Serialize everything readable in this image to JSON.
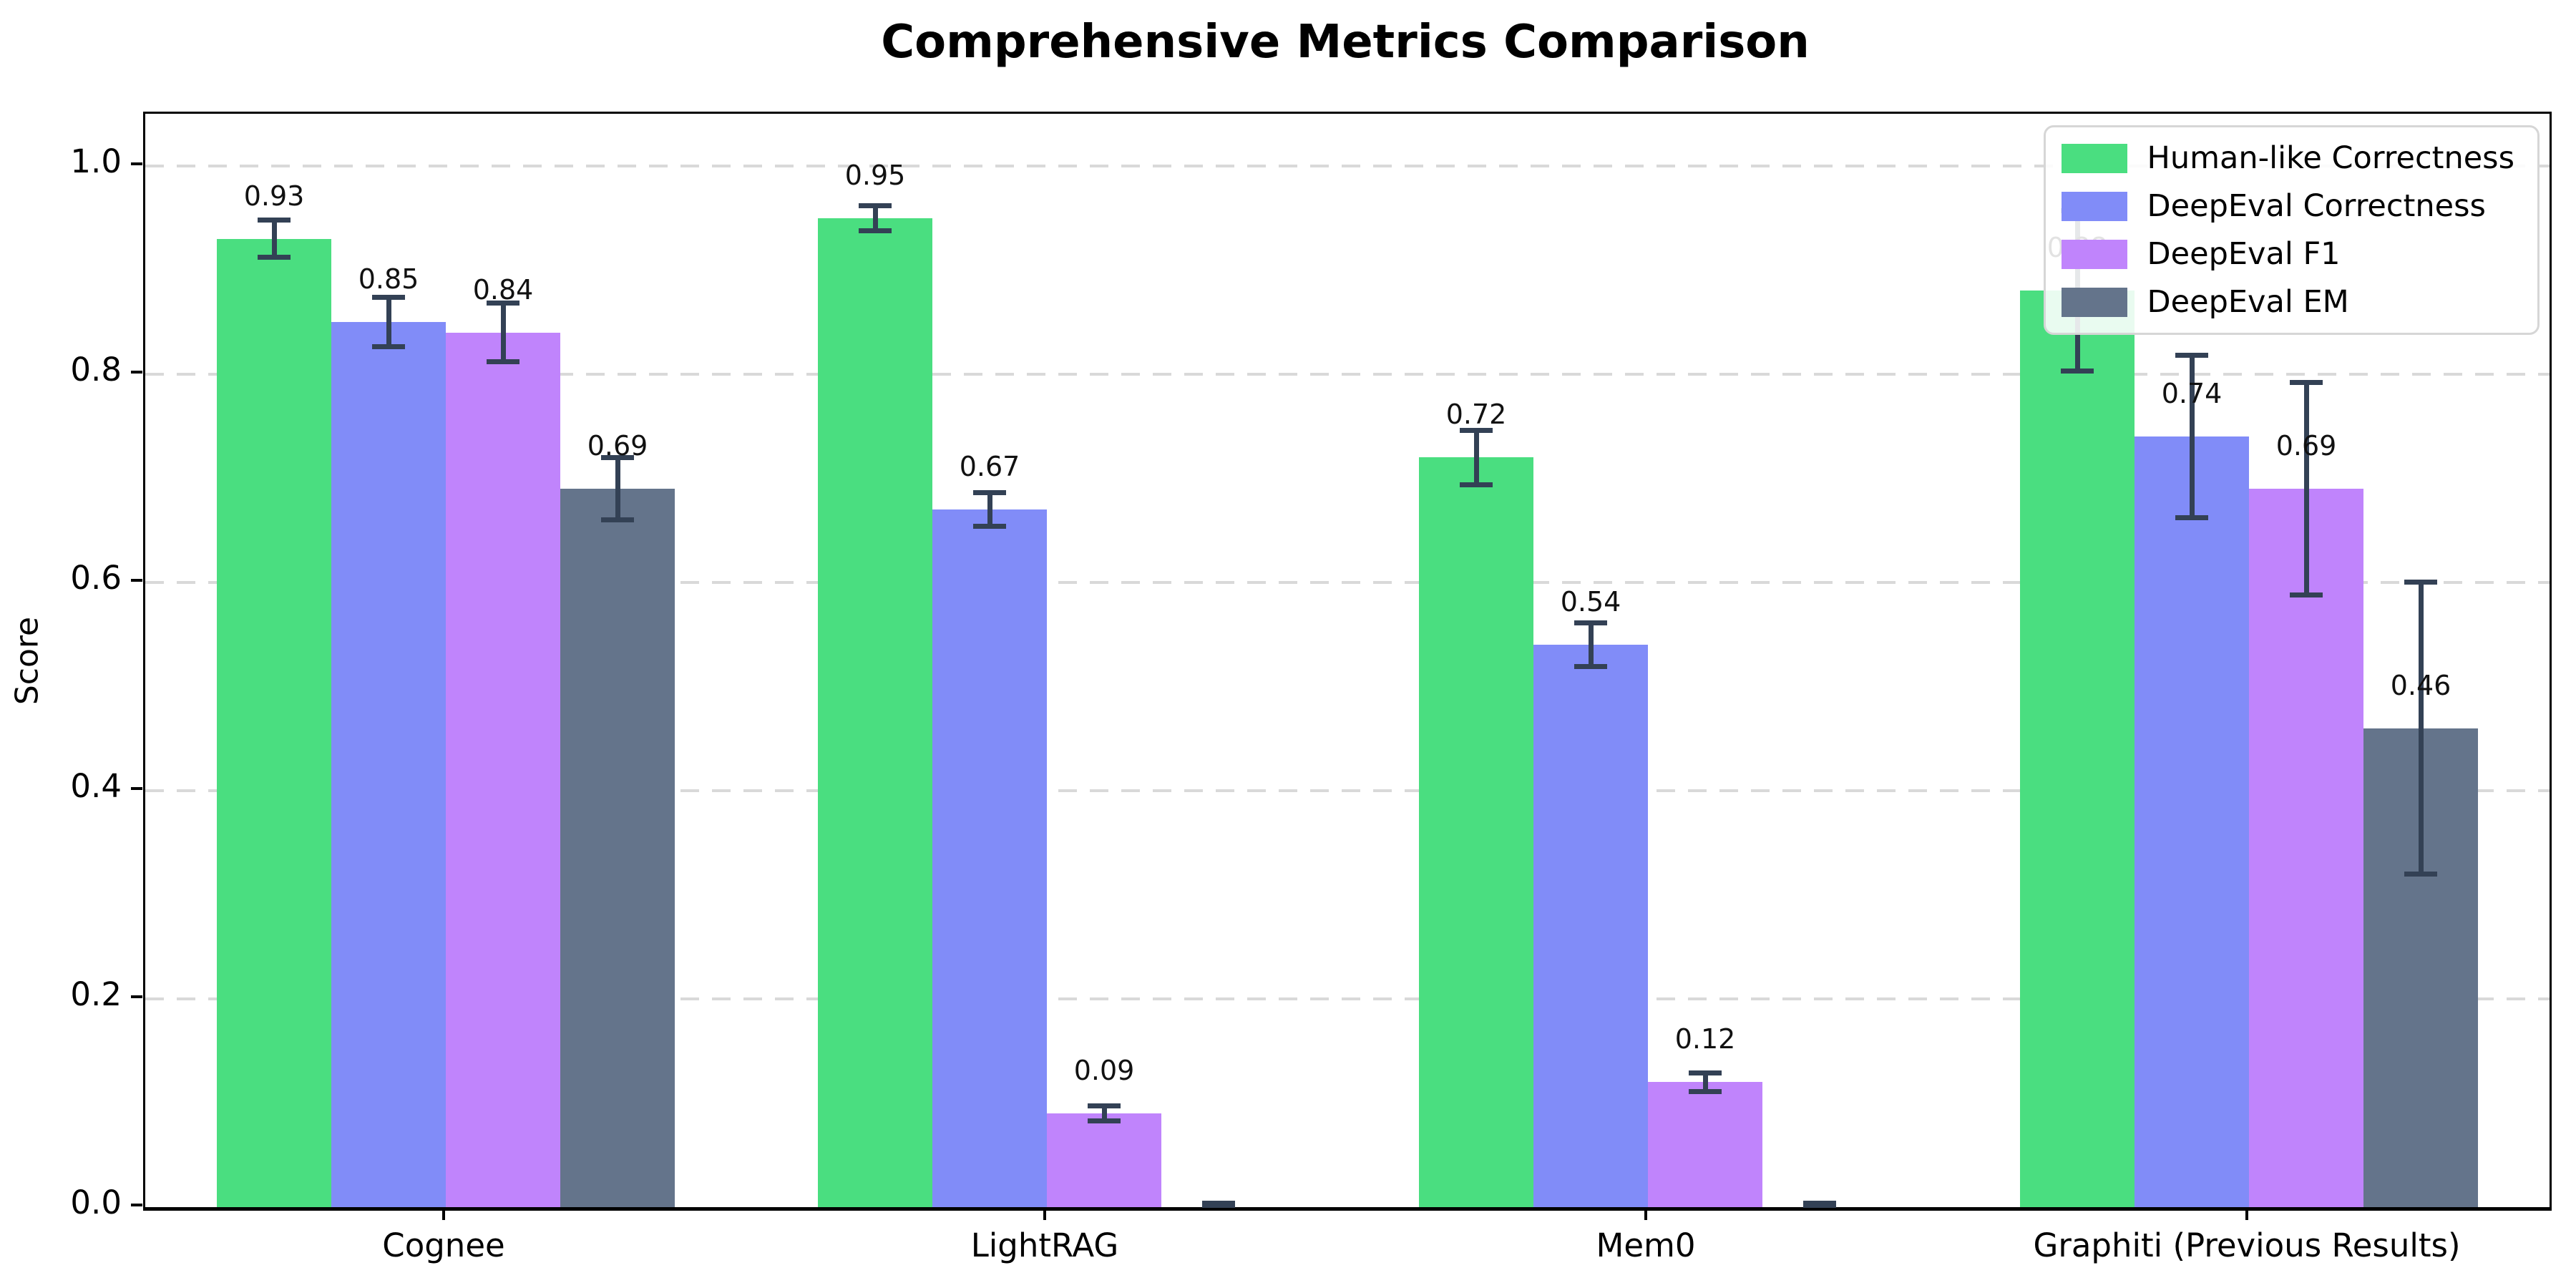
{
  "chart_data": {
    "type": "bar",
    "title": "Comprehensive Metrics Comparison",
    "xlabel": "",
    "ylabel": "Score",
    "categories": [
      "Cognee",
      "LightRAG",
      "Mem0",
      "Graphiti (Previous Results)"
    ],
    "series": [
      {
        "name": "Human-like Correctness",
        "color": "#4ade80",
        "values": [
          0.93,
          0.95,
          0.72,
          0.88
        ],
        "errors": [
          0.018,
          0.012,
          0.026,
          0.077
        ],
        "labels": [
          "0.93",
          "0.95",
          "0.72",
          "0.88"
        ]
      },
      {
        "name": "DeepEval Correctness",
        "color": "#818cf8",
        "values": [
          0.85,
          0.67,
          0.54,
          0.74
        ],
        "errors": [
          0.024,
          0.016,
          0.021,
          0.078
        ],
        "labels": [
          "0.85",
          "0.67",
          "0.54",
          "0.74"
        ]
      },
      {
        "name": "DeepEval F1",
        "color": "#c084fc",
        "values": [
          0.84,
          0.09,
          0.12,
          0.69
        ],
        "errors": [
          0.028,
          0.007,
          0.009,
          0.102
        ],
        "labels": [
          "0.84",
          "0.09",
          "0.12",
          "0.69"
        ]
      },
      {
        "name": "DeepEval EM",
        "color": "#64748b",
        "values": [
          0.69,
          0.0,
          0.0,
          0.46
        ],
        "errors": [
          0.03,
          0.004,
          0.004,
          0.14
        ],
        "labels": [
          "0.69",
          null,
          null,
          "0.46"
        ]
      }
    ],
    "yticks": [
      "0.0",
      "0.2",
      "0.4",
      "0.6",
      "0.8",
      "1.0"
    ],
    "ylim": [
      0.0,
      1.05
    ],
    "grid": "horizontal-dashed",
    "legend_position": "upper right",
    "error_bar_color": "#334155"
  }
}
